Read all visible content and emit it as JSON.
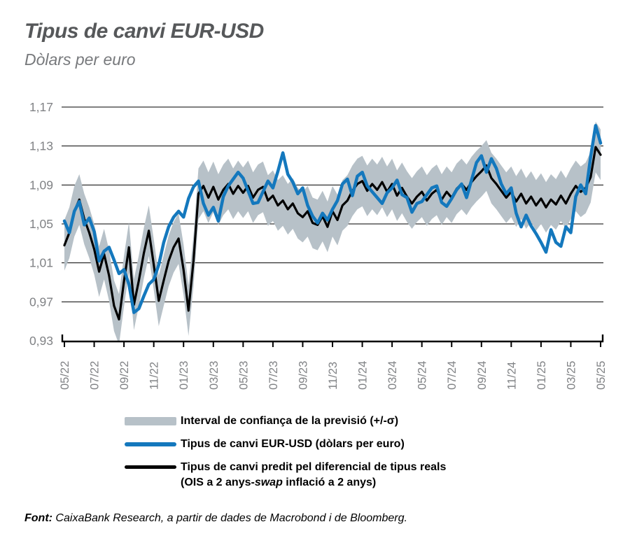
{
  "title": "Tipus de canvi EUR-USD",
  "subtitle": "Dòlars per euro",
  "footer": {
    "source_label": "Font:",
    "source_text": " CaixaBank Research, a partir de dades de Macrobond i de Bloomberg."
  },
  "colors": {
    "band": "#b7c1c8",
    "eurusd_line": "#1478bd",
    "predicted_line": "#000000",
    "grid": "#000000",
    "axis_labels": "#808285",
    "title_text": "#56585a",
    "subtitle_text": "#77797c"
  },
  "legend": {
    "items": [
      {
        "swatch": "band",
        "label": "Interval de confiança de la previsió (+/-σ)"
      },
      {
        "swatch": "line-blue",
        "label": "Tipus de canvi EUR-USD (dòlars per euro)"
      },
      {
        "swatch": "line-black",
        "label_line1": "Tipus de canvi predit pel diferencial de tipus reals",
        "label_line2_pre": "(OIS a 2 anys-",
        "label_line2_italic": "swap",
        "label_line2_post": " inflació a 2 anys)"
      }
    ]
  },
  "chart_data": {
    "type": "line",
    "title": "Tipus de canvi EUR-USD",
    "subtitle": "Dòlars per euro",
    "xlabel": "",
    "ylabel": "Dòlars per euro",
    "ylim": [
      0.93,
      1.17
    ],
    "y_tick_values": [
      0.93,
      0.97,
      1.01,
      1.05,
      1.09,
      1.13,
      1.17
    ],
    "y_tick_labels": [
      "0,93",
      "0,97",
      "1,01",
      "1,05",
      "1,09",
      "1,13",
      "1,17"
    ],
    "grid_values": [
      0.97,
      1.01,
      1.05,
      1.09,
      1.13,
      1.17
    ],
    "x_tick_labels": [
      "05/22",
      "07/22",
      "09/22",
      "11/22",
      "01/23",
      "03/23",
      "05/23",
      "07/23",
      "09/23",
      "11/23",
      "01/24",
      "03/24",
      "05/24",
      "07/24",
      "09/24",
      "11/24",
      "01/25",
      "03/25",
      "05/25"
    ],
    "x_tick_interval_months": 2,
    "months_span": 36,
    "points_per_month": 3,
    "band_sigma": 0.026,
    "legend_position": "bottom",
    "grid": true,
    "series": [
      {
        "name": "Interval de confiança de la previsió (+/-σ)",
        "type": "band",
        "around_series": "Tipus de canvi predit pel diferencial de tipus reals",
        "color": "#b7c1c8"
      },
      {
        "name": "Tipus de canvi EUR-USD (dòlars per euro)",
        "type": "line",
        "color": "#1478bd",
        "stroke_width": 4.5,
        "values": [
          1.053,
          1.041,
          1.063,
          1.073,
          1.049,
          1.056,
          1.042,
          1.012,
          1.022,
          1.026,
          1.013,
          0.999,
          1.003,
          0.988,
          0.959,
          0.963,
          0.976,
          0.988,
          0.993,
          1.008,
          1.031,
          1.047,
          1.057,
          1.063,
          1.057,
          1.076,
          1.088,
          1.094,
          1.071,
          1.059,
          1.067,
          1.053,
          1.078,
          1.089,
          1.096,
          1.103,
          1.097,
          1.084,
          1.071,
          1.072,
          1.083,
          1.094,
          1.087,
          1.104,
          1.123,
          1.101,
          1.093,
          1.081,
          1.087,
          1.069,
          1.058,
          1.051,
          1.061,
          1.054,
          1.065,
          1.074,
          1.091,
          1.096,
          1.079,
          1.099,
          1.103,
          1.089,
          1.083,
          1.077,
          1.071,
          1.082,
          1.087,
          1.095,
          1.08,
          1.077,
          1.062,
          1.071,
          1.073,
          1.08,
          1.087,
          1.089,
          1.072,
          1.068,
          1.076,
          1.085,
          1.091,
          1.077,
          1.095,
          1.113,
          1.12,
          1.103,
          1.117,
          1.107,
          1.091,
          1.081,
          1.087,
          1.061,
          1.047,
          1.059,
          1.048,
          1.04,
          1.031,
          1.021,
          1.044,
          1.031,
          1.027,
          1.047,
          1.041,
          1.078,
          1.09,
          1.081,
          1.119,
          1.151,
          1.133
        ]
      },
      {
        "name": "Tipus de canvi predit pel diferencial de tipus reals (OIS a 2 anys-swap inflació a 2 anys)",
        "type": "line",
        "color": "#000000",
        "stroke_width": 3.2,
        "values": [
          1.028,
          1.041,
          1.063,
          1.075,
          1.055,
          1.041,
          1.024,
          1.001,
          1.019,
          0.997,
          0.966,
          0.952,
          0.991,
          1.026,
          0.967,
          0.992,
          1.02,
          1.043,
          1.008,
          0.971,
          0.992,
          1.012,
          1.026,
          1.035,
          1.003,
          0.961,
          1.012,
          1.081,
          1.089,
          1.077,
          1.088,
          1.075,
          1.085,
          1.091,
          1.081,
          1.089,
          1.082,
          1.089,
          1.077,
          1.085,
          1.088,
          1.074,
          1.079,
          1.069,
          1.074,
          1.065,
          1.071,
          1.061,
          1.057,
          1.063,
          1.051,
          1.049,
          1.058,
          1.047,
          1.063,
          1.054,
          1.069,
          1.074,
          1.084,
          1.091,
          1.094,
          1.084,
          1.091,
          1.085,
          1.093,
          1.083,
          1.091,
          1.079,
          1.087,
          1.078,
          1.071,
          1.078,
          1.083,
          1.074,
          1.081,
          1.085,
          1.075,
          1.083,
          1.077,
          1.086,
          1.091,
          1.085,
          1.093,
          1.099,
          1.104,
          1.11,
          1.097,
          1.091,
          1.084,
          1.077,
          1.083,
          1.073,
          1.081,
          1.071,
          1.078,
          1.069,
          1.076,
          1.067,
          1.075,
          1.07,
          1.079,
          1.071,
          1.081,
          1.089,
          1.083,
          1.087,
          1.098,
          1.129,
          1.121
        ]
      }
    ]
  }
}
